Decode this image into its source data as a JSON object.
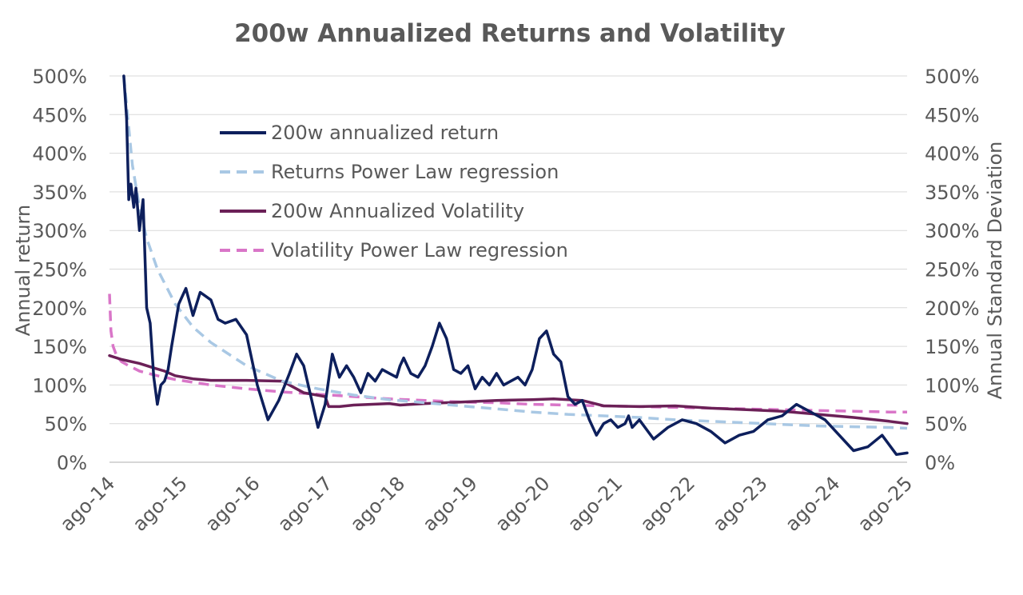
{
  "chart_data": {
    "type": "line",
    "title": "200w Annualized Returns and Volatility",
    "ylabel": "Annual return",
    "y2label": "Annual Standard Deviation",
    "ylim": [
      0,
      500
    ],
    "y2lim": [
      0,
      500
    ],
    "yticks": [
      "0%",
      "50%",
      "100%",
      "150%",
      "200%",
      "250%",
      "300%",
      "350%",
      "400%",
      "450%",
      "500%"
    ],
    "y2ticks": [
      "0%",
      "50%",
      "100%",
      "150%",
      "200%",
      "250%",
      "300%",
      "350%",
      "400%",
      "450%",
      "500%"
    ],
    "categories": [
      "ago-14",
      "ago-15",
      "ago-16",
      "ago-17",
      "ago-18",
      "ago-19",
      "ago-20",
      "ago-21",
      "ago-22",
      "ago-23",
      "ago-24",
      "ago-25"
    ],
    "xlim": [
      2014.58,
      2025.75
    ],
    "grid": true,
    "legend_position": "top-center",
    "series": [
      {
        "name": "200w annualized return",
        "color": "#0d1f5c",
        "style": "solid",
        "axis": "left",
        "x": [
          2014.78,
          2014.82,
          2014.85,
          2014.88,
          2014.92,
          2014.95,
          2015.0,
          2015.05,
          2015.1,
          2015.15,
          2015.2,
          2015.25,
          2015.3,
          2015.35,
          2015.4,
          2015.45,
          2015.55,
          2015.65,
          2015.75,
          2015.85,
          2016.0,
          2016.1,
          2016.2,
          2016.35,
          2016.5,
          2016.65,
          2016.8,
          2016.95,
          2017.1,
          2017.2,
          2017.3,
          2017.4,
          2017.5,
          2017.6,
          2017.7,
          2017.8,
          2017.9,
          2018.0,
          2018.1,
          2018.2,
          2018.3,
          2018.4,
          2018.5,
          2018.6,
          2018.65,
          2018.7,
          2018.8,
          2018.9,
          2019.0,
          2019.1,
          2019.2,
          2019.3,
          2019.4,
          2019.5,
          2019.6,
          2019.7,
          2019.8,
          2019.9,
          2020.0,
          2020.1,
          2020.2,
          2020.3,
          2020.4,
          2020.5,
          2020.6,
          2020.7,
          2020.8,
          2020.9,
          2021.0,
          2021.1,
          2021.2,
          2021.3,
          2021.4,
          2021.5,
          2021.6,
          2021.7,
          2021.8,
          2021.85,
          2021.9,
          2022.0,
          2022.2,
          2022.4,
          2022.6,
          2022.8,
          2023.0,
          2023.2,
          2023.4,
          2023.6,
          2023.8,
          2024.0,
          2024.2,
          2024.4,
          2024.6,
          2024.8,
          2025.0,
          2025.2,
          2025.4,
          2025.6,
          2025.75
        ],
        "values": [
          500,
          445,
          340,
          360,
          330,
          355,
          300,
          340,
          200,
          180,
          110,
          75,
          100,
          105,
          120,
          150,
          205,
          225,
          190,
          220,
          210,
          185,
          180,
          185,
          165,
          100,
          55,
          80,
          115,
          140,
          125,
          85,
          45,
          75,
          140,
          110,
          125,
          110,
          90,
          115,
          105,
          120,
          115,
          110,
          125,
          135,
          115,
          110,
          125,
          150,
          180,
          160,
          120,
          115,
          125,
          95,
          110,
          100,
          115,
          100,
          105,
          110,
          100,
          120,
          160,
          170,
          140,
          130,
          85,
          75,
          80,
          55,
          35,
          50,
          55,
          45,
          50,
          60,
          45,
          55,
          30,
          45,
          55,
          50,
          40,
          25,
          35,
          40,
          55,
          60,
          75,
          65,
          55,
          35,
          15,
          20,
          35,
          10,
          12
        ]
      },
      {
        "name": "Returns Power Law regression",
        "color": "#a9c8e4",
        "style": "dashed",
        "axis": "left",
        "x": [
          2014.78,
          2014.9,
          2015.0,
          2015.1,
          2015.25,
          2015.5,
          2015.75,
          2016.0,
          2016.5,
          2017.0,
          2017.5,
          2018.0,
          2018.5,
          2019.0,
          2019.5,
          2020.0,
          2020.5,
          2021.0,
          2021.5,
          2022.0,
          2022.5,
          2023.0,
          2023.5,
          2024.0,
          2024.5,
          2025.0,
          2025.5,
          2025.75
        ],
        "values": [
          500,
          385,
          330,
          290,
          250,
          205,
          175,
          155,
          125,
          105,
          95,
          87,
          81,
          77,
          73,
          69,
          65,
          62,
          60,
          58,
          55,
          53,
          51,
          49,
          47,
          46,
          45,
          44
        ]
      },
      {
        "name": "200w Annualized Volatility",
        "color": "#6b2057",
        "style": "solid",
        "axis": "right",
        "x": [
          2014.58,
          2014.75,
          2015.0,
          2015.2,
          2015.35,
          2015.5,
          2015.75,
          2016.0,
          2016.5,
          2017.0,
          2017.3,
          2017.6,
          2017.65,
          2017.8,
          2018.0,
          2018.5,
          2018.65,
          2019.0,
          2019.5,
          2020.0,
          2020.5,
          2020.8,
          2021.2,
          2021.5,
          2022.0,
          2022.5,
          2023.0,
          2023.5,
          2024.0,
          2024.5,
          2025.0,
          2025.5,
          2025.75
        ],
        "values": [
          138,
          133,
          128,
          122,
          118,
          112,
          108,
          106,
          106,
          105,
          90,
          85,
          72,
          72,
          74,
          76,
          74,
          76,
          78,
          80,
          81,
          82,
          80,
          73,
          72,
          73,
          70,
          68,
          66,
          62,
          58,
          53,
          50
        ]
      },
      {
        "name": "Volatility Power Law regression",
        "color": "#d976c8",
        "style": "dashed",
        "axis": "right",
        "x": [
          2014.58,
          2014.6,
          2014.63,
          2014.68,
          2014.75,
          2014.85,
          2015.0,
          2015.25,
          2015.5,
          2016.0,
          2016.5,
          2017.0,
          2017.5,
          2018.0,
          2018.5,
          2019.0,
          2019.5,
          2020.0,
          2020.5,
          2021.0,
          2021.5,
          2022.0,
          2022.5,
          2023.0,
          2023.5,
          2024.0,
          2024.5,
          2025.0,
          2025.5,
          2025.75
        ],
        "values": [
          218,
          170,
          150,
          138,
          130,
          125,
          118,
          112,
          107,
          100,
          95,
          91,
          88,
          85,
          82,
          80,
          78,
          77,
          75,
          74,
          73,
          72,
          71,
          70,
          69,
          68,
          67,
          66,
          65,
          65
        ]
      }
    ]
  }
}
